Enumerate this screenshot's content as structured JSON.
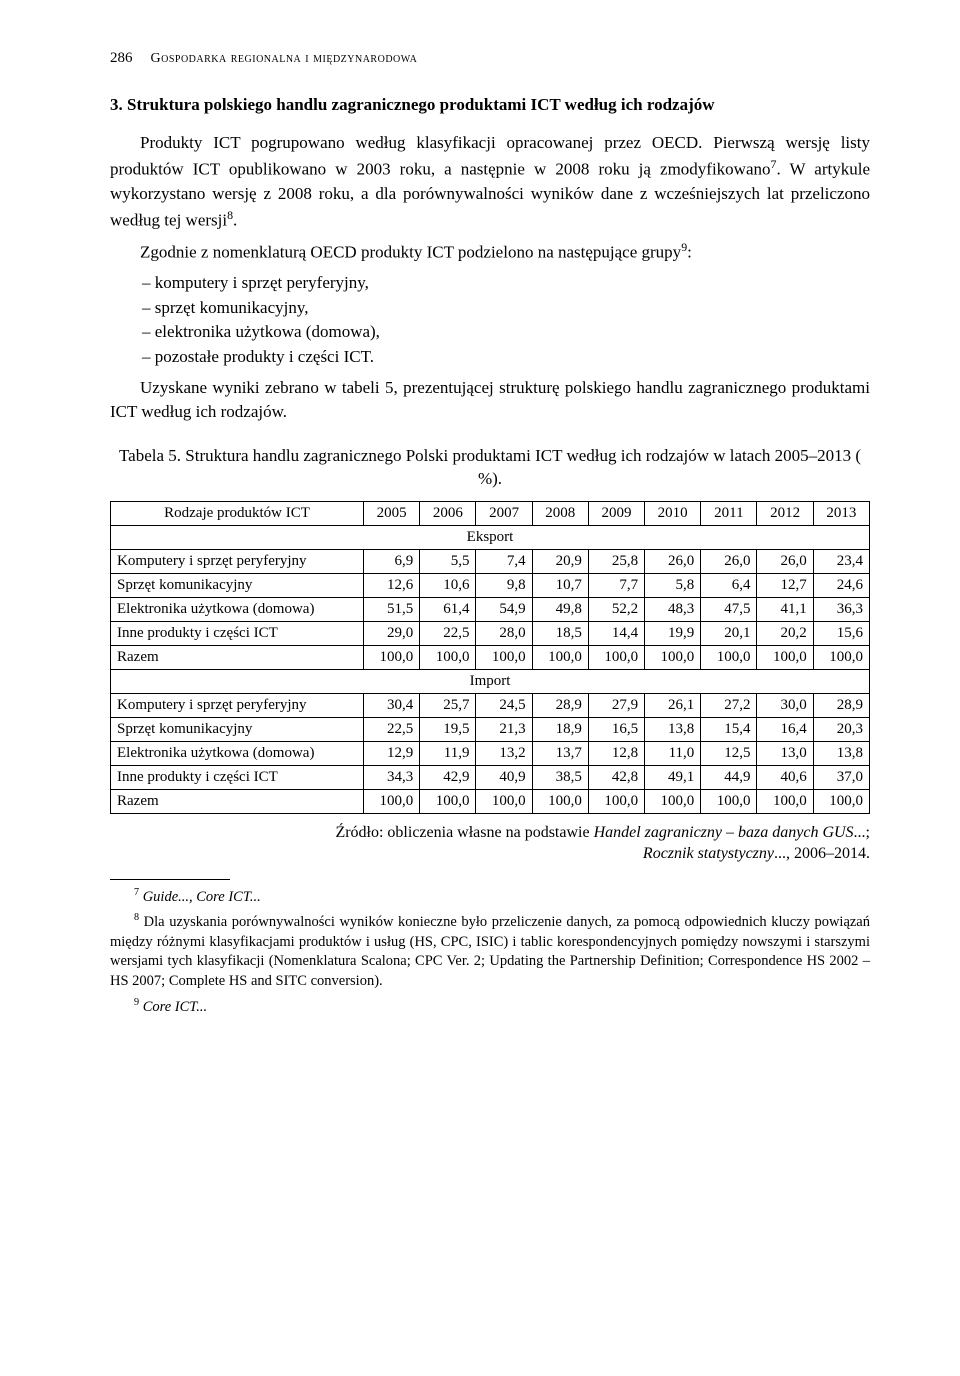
{
  "header": {
    "page_number": "286",
    "running_title": "Gospodarka regionalna i międzynarodowa"
  },
  "section": {
    "title": "3. Struktura polskiego handlu zagranicznego produktami ICT według ich rodzajów",
    "para1_a": "Produkty ICT pogrupowano według klasyfikacji opracowanej przez OECD. Pierwszą wersję listy produktów ICT opublikowano w 2003 roku, a następnie w 2008 roku ją zmodyfikowano",
    "para1_sup1": "7",
    "para1_b": ". W artykule wykorzystano wersję z 2008 roku, a dla porównywalności wyników dane z wcześniejszych lat przeliczono według tej wersji",
    "para1_sup2": "8",
    "para1_c": ".",
    "para2_a": "Zgodnie z nomenklaturą OECD produkty ICT podzielono na następujące grupy",
    "para2_sup": "9",
    "para2_b": ":",
    "list": [
      "komputery i sprzęt peryferyjny,",
      "sprzęt komunikacyjny,",
      "elektronika użytkowa (domowa),",
      "pozostałe produkty i części ICT."
    ],
    "para3": "Uzyskane wyniki zebrano w tabeli 5, prezentującej strukturę polskiego handlu zagranicznego produktami ICT według ich rodzajów."
  },
  "table": {
    "caption": "Tabela 5. Struktura handlu zagranicznego Polski produktami ICT według ich rodzajów w latach 2005–2013 ( %).",
    "header_label": "Rodzaje produktów ICT",
    "years": [
      "2005",
      "2006",
      "2007",
      "2008",
      "2009",
      "2010",
      "2011",
      "2012",
      "2013"
    ],
    "section_eksport": "Eksport",
    "section_import": "Import",
    "row_labels": {
      "komputery": "Komputery i sprzęt peryferyjny",
      "sprzet": "Sprzęt komunikacyjny",
      "elektronika": "Elektronika użytkowa (domowa)",
      "inne": "Inne produkty i części ICT",
      "razem": "Razem"
    },
    "eksport": {
      "komputery": [
        "6,9",
        "5,5",
        "7,4",
        "20,9",
        "25,8",
        "26,0",
        "26,0",
        "26,0",
        "23,4"
      ],
      "sprzet": [
        "12,6",
        "10,6",
        "9,8",
        "10,7",
        "7,7",
        "5,8",
        "6,4",
        "12,7",
        "24,6"
      ],
      "elektronika": [
        "51,5",
        "61,4",
        "54,9",
        "49,8",
        "52,2",
        "48,3",
        "47,5",
        "41,1",
        "36,3"
      ],
      "inne": [
        "29,0",
        "22,5",
        "28,0",
        "18,5",
        "14,4",
        "19,9",
        "20,1",
        "20,2",
        "15,6"
      ],
      "razem": [
        "100,0",
        "100,0",
        "100,0",
        "100,0",
        "100,0",
        "100,0",
        "100,0",
        "100,0",
        "100,0"
      ]
    },
    "import": {
      "komputery": [
        "30,4",
        "25,7",
        "24,5",
        "28,9",
        "27,9",
        "26,1",
        "27,2",
        "30,0",
        "28,9"
      ],
      "sprzet": [
        "22,5",
        "19,5",
        "21,3",
        "18,9",
        "16,5",
        "13,8",
        "15,4",
        "16,4",
        "20,3"
      ],
      "elektronika": [
        "12,9",
        "11,9",
        "13,2",
        "13,7",
        "12,8",
        "11,0",
        "12,5",
        "13,0",
        "13,8"
      ],
      "inne": [
        "34,3",
        "42,9",
        "40,9",
        "38,5",
        "42,8",
        "49,1",
        "44,9",
        "40,6",
        "37,0"
      ],
      "razem": [
        "100,0",
        "100,0",
        "100,0",
        "100,0",
        "100,0",
        "100,0",
        "100,0",
        "100,0",
        "100,0"
      ]
    },
    "source_a": "Źródło: obliczenia własne na podstawie ",
    "source_b": "Handel zagraniczny – baza danych GUS",
    "source_c": "...; ",
    "source_d": "Rocznik statystyczny",
    "source_e": "..., 2006–2014."
  },
  "footnotes": {
    "fn7_sup": "7",
    "fn7_a": " ",
    "fn7_b": "Guide..., Core ICT...",
    "fn8_sup": "8",
    "fn8": " Dla uzyskania porównywalności wyników konieczne było przeliczenie danych, za pomocą odpowiednich kluczy powiązań między różnymi klasyfikacjami produktów i usług (HS, CPC, ISIC) i tablic korespondencyjnych pomiędzy nowszymi i starszymi wersjami tych klasyfikacji (Nomenklatura Scalona; CPC Ver. 2; Updating the Partnership Definition; Correspondence HS 2002 – HS 2007; Complete HS and SITC conversion).",
    "fn9_sup": "9",
    "fn9_a": " ",
    "fn9_b": "Core ICT..."
  },
  "style": {
    "body_font_size": 17,
    "table_font_size": 15,
    "footnote_font_size": 14.5,
    "text_color": "#000000",
    "background_color": "#ffffff",
    "border_color": "#000000"
  }
}
